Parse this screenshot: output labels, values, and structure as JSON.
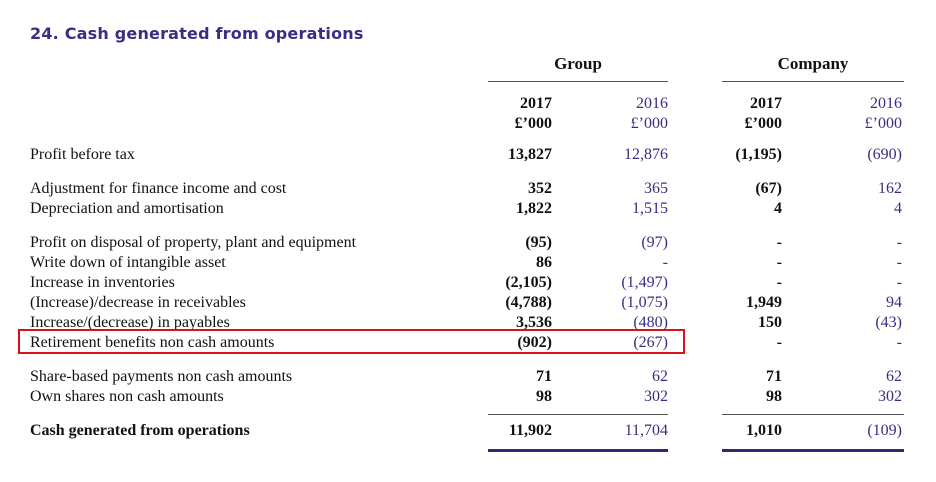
{
  "title": "24. Cash generated from operations",
  "groups": {
    "group": "Group",
    "company": "Company"
  },
  "columns": [
    {
      "year": "2017",
      "unit": "£’000"
    },
    {
      "year": "2016",
      "unit": "£’000"
    },
    {
      "year": "2017",
      "unit": "£’000"
    },
    {
      "year": "2016",
      "unit": "£’000"
    }
  ],
  "rows": [
    {
      "label": "Profit before tax",
      "values": [
        "13,827",
        "12,876",
        "(1,195)",
        "(690)"
      ]
    },
    {
      "label": "Adjustment for finance income and cost",
      "values": [
        "352",
        "365",
        "(67)",
        "162"
      ]
    },
    {
      "label": "Depreciation and amortisation",
      "values": [
        "1,822",
        "1,515",
        "4",
        "4"
      ]
    },
    {
      "label": "Profit on disposal of property, plant and equipment",
      "values": [
        "(95)",
        "(97)",
        "-",
        "-"
      ]
    },
    {
      "label": "Write down of intangible asset",
      "values": [
        "86",
        "-",
        "-",
        "-"
      ]
    },
    {
      "label": "Increase in inventories",
      "values": [
        "(2,105)",
        "(1,497)",
        "-",
        "-"
      ]
    },
    {
      "label": "(Increase)/decrease in receivables",
      "values": [
        "(4,788)",
        "(1,075)",
        "1,949",
        "94"
      ]
    },
    {
      "label": "Increase/(decrease) in payables",
      "values": [
        "3,536",
        "(480)",
        "150",
        "(43)"
      ]
    },
    {
      "label": "Retirement benefits non cash amounts",
      "values": [
        "(902)",
        "(267)",
        "-",
        "-"
      ]
    },
    {
      "label": "Share-based payments non cash amounts",
      "values": [
        "71",
        "62",
        "71",
        "62"
      ]
    },
    {
      "label": "Own shares non cash amounts",
      "values": [
        "98",
        "302",
        "98",
        "302"
      ]
    },
    {
      "label": "Cash generated from operations",
      "values": [
        "11,902",
        "11,704",
        "1,010",
        "(109)"
      ]
    }
  ]
}
